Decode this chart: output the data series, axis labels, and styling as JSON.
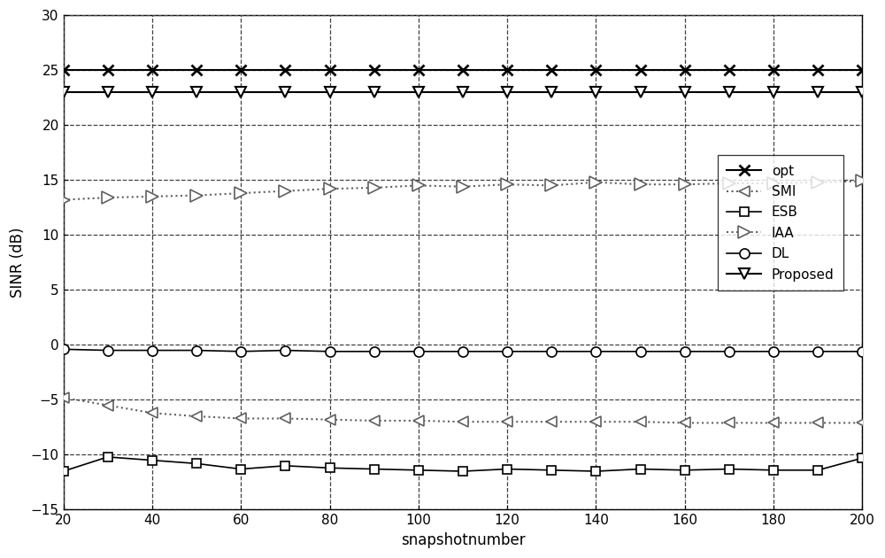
{
  "x": [
    20,
    30,
    40,
    50,
    60,
    70,
    80,
    90,
    100,
    110,
    120,
    130,
    140,
    150,
    160,
    170,
    180,
    190,
    200
  ],
  "opt": [
    25.0,
    25.0,
    25.0,
    25.0,
    25.0,
    25.0,
    25.0,
    25.0,
    25.0,
    25.0,
    25.0,
    25.0,
    25.0,
    25.0,
    25.0,
    25.0,
    25.0,
    25.0,
    25.0
  ],
  "proposed": [
    23.0,
    23.0,
    23.0,
    23.0,
    23.0,
    23.0,
    23.0,
    23.0,
    23.0,
    23.0,
    23.0,
    23.0,
    23.0,
    23.0,
    23.0,
    23.0,
    23.0,
    23.0,
    23.0
  ],
  "IAA": [
    13.2,
    13.4,
    13.5,
    13.6,
    13.8,
    14.0,
    14.2,
    14.3,
    14.5,
    14.4,
    14.6,
    14.5,
    14.8,
    14.6,
    14.6,
    14.7,
    14.7,
    14.8,
    14.9
  ],
  "DL": [
    -0.4,
    -0.5,
    -0.5,
    -0.5,
    -0.6,
    -0.5,
    -0.6,
    -0.6,
    -0.6,
    -0.6,
    -0.6,
    -0.6,
    -0.6,
    -0.6,
    -0.6,
    -0.6,
    -0.6,
    -0.6,
    -0.6
  ],
  "SMI": [
    -4.8,
    -5.5,
    -6.2,
    -6.5,
    -6.7,
    -6.7,
    -6.8,
    -6.9,
    -6.9,
    -7.0,
    -7.0,
    -7.0,
    -7.0,
    -7.0,
    -7.1,
    -7.1,
    -7.1,
    -7.1,
    -7.1
  ],
  "ESB": [
    -11.5,
    -10.2,
    -10.5,
    -10.8,
    -11.3,
    -11.0,
    -11.2,
    -11.3,
    -11.4,
    -11.5,
    -11.3,
    -11.4,
    -11.5,
    -11.3,
    -11.4,
    -11.3,
    -11.4,
    -11.4,
    -10.3
  ],
  "xlim": [
    20,
    200
  ],
  "ylim": [
    -15,
    30
  ],
  "yticks": [
    -15,
    -10,
    -5,
    0,
    5,
    10,
    15,
    20,
    25,
    30
  ],
  "xticks": [
    20,
    40,
    60,
    80,
    100,
    120,
    140,
    160,
    180,
    200
  ],
  "xlabel": "snapshotnumber",
  "ylabel": "SINR (dB)",
  "black": "#000000",
  "gray": "#606060",
  "grid_color": "#404040",
  "bg_color": "#ffffff"
}
